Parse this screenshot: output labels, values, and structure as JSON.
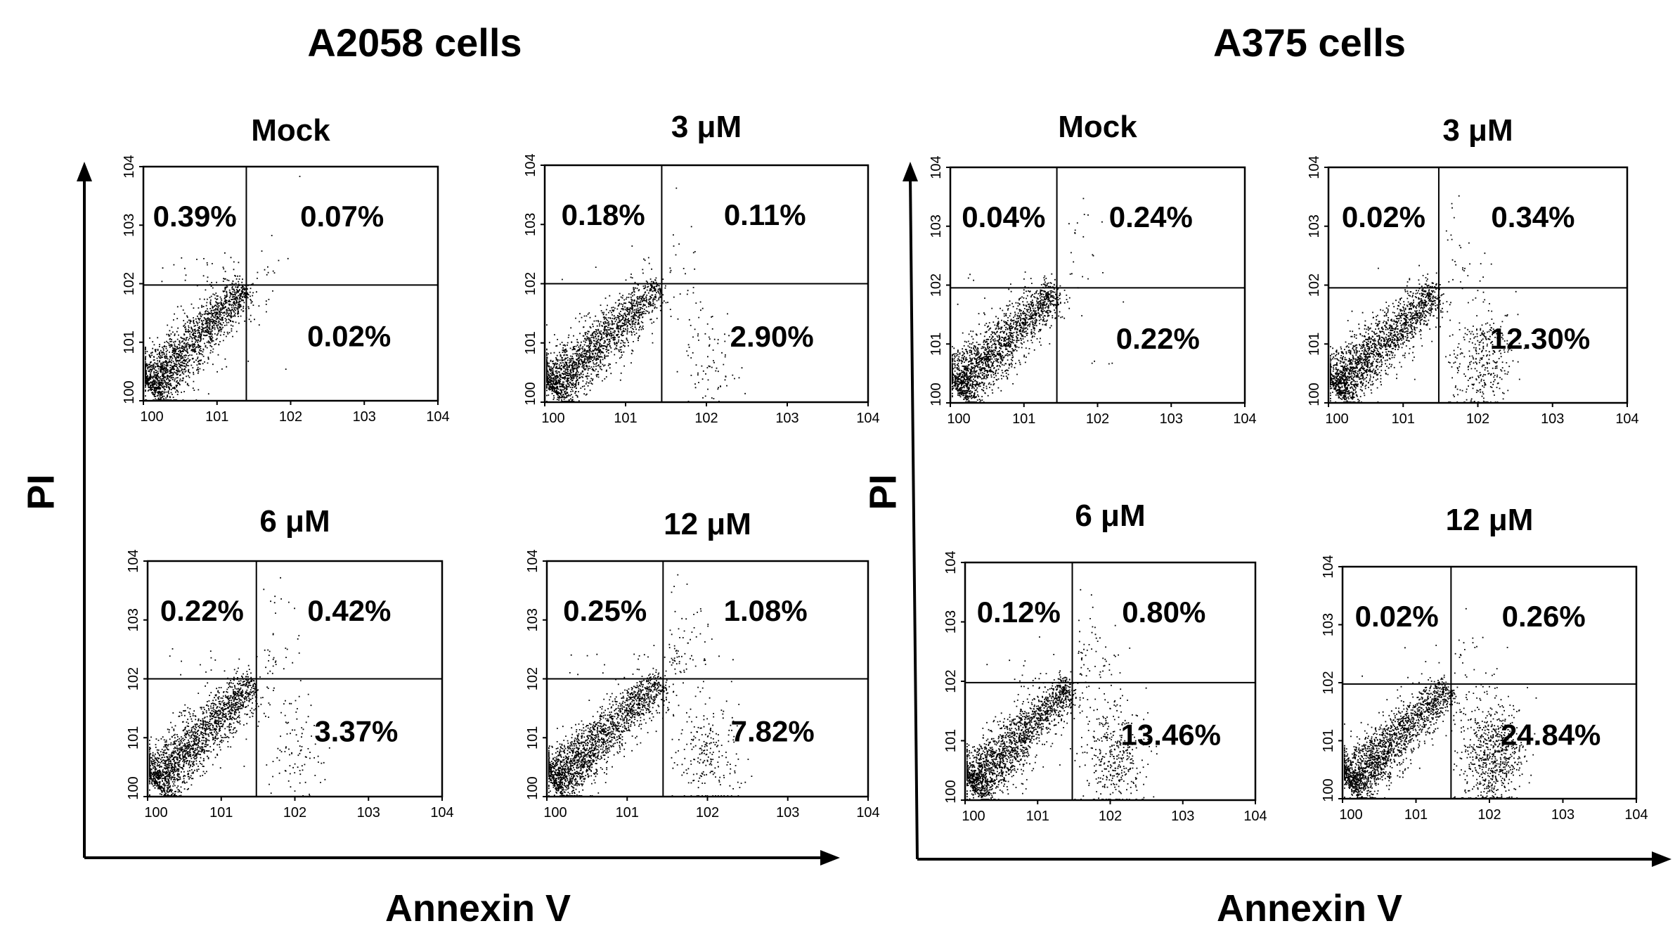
{
  "chart_data": [
    {
      "type": "scatter",
      "title": "A2058 cells",
      "xlabel": "Annexin V",
      "ylabel": "PI",
      "x_scale": "log",
      "y_scale": "log",
      "xlim": [
        1,
        10000
      ],
      "ylim": [
        1,
        10000
      ],
      "tick_labels": [
        "100",
        "101",
        "102",
        "103",
        "104"
      ],
      "panels": [
        {
          "title": "Mock",
          "gate_x": 25,
          "gate_y": 95,
          "upper_left": "0.39%",
          "upper_right": "0.07%",
          "lower_right": "0.02%"
        },
        {
          "title": "3 μM",
          "gate_x": 28,
          "gate_y": 100,
          "upper_left": "0.18%",
          "upper_right": "0.11%",
          "lower_right": "2.90%"
        },
        {
          "title": "6 μM",
          "gate_x": 30,
          "gate_y": 100,
          "upper_left": "0.22%",
          "upper_right": "0.42%",
          "lower_right": "3.37%"
        },
        {
          "title": "12 μM",
          "gate_x": 28,
          "gate_y": 100,
          "upper_left": "0.25%",
          "upper_right": "1.08%",
          "lower_right": "7.82%"
        }
      ]
    },
    {
      "type": "scatter",
      "title": "A375 cells",
      "xlabel": "Annexin V",
      "ylabel": "PI",
      "x_scale": "log",
      "y_scale": "log",
      "xlim": [
        1,
        10000
      ],
      "ylim": [
        1,
        10000
      ],
      "tick_labels": [
        "100",
        "101",
        "102",
        "103",
        "104"
      ],
      "panels": [
        {
          "title": "Mock",
          "gate_x": 28,
          "gate_y": 90,
          "upper_left": "0.04%",
          "upper_right": "0.24%",
          "lower_right": "0.22%"
        },
        {
          "title": "3 μM",
          "gate_x": 30,
          "gate_y": 90,
          "upper_left": "0.02%",
          "upper_right": "0.34%",
          "lower_right": "12.30%"
        },
        {
          "title": "6 μM",
          "gate_x": 30,
          "gate_y": 95,
          "upper_left": "0.12%",
          "upper_right": "0.80%",
          "lower_right": "13.46%"
        },
        {
          "title": "12 μM",
          "gate_x": 30,
          "gate_y": 95,
          "upper_left": "0.02%",
          "upper_right": "0.26%",
          "lower_right": "24.84%"
        }
      ]
    }
  ]
}
